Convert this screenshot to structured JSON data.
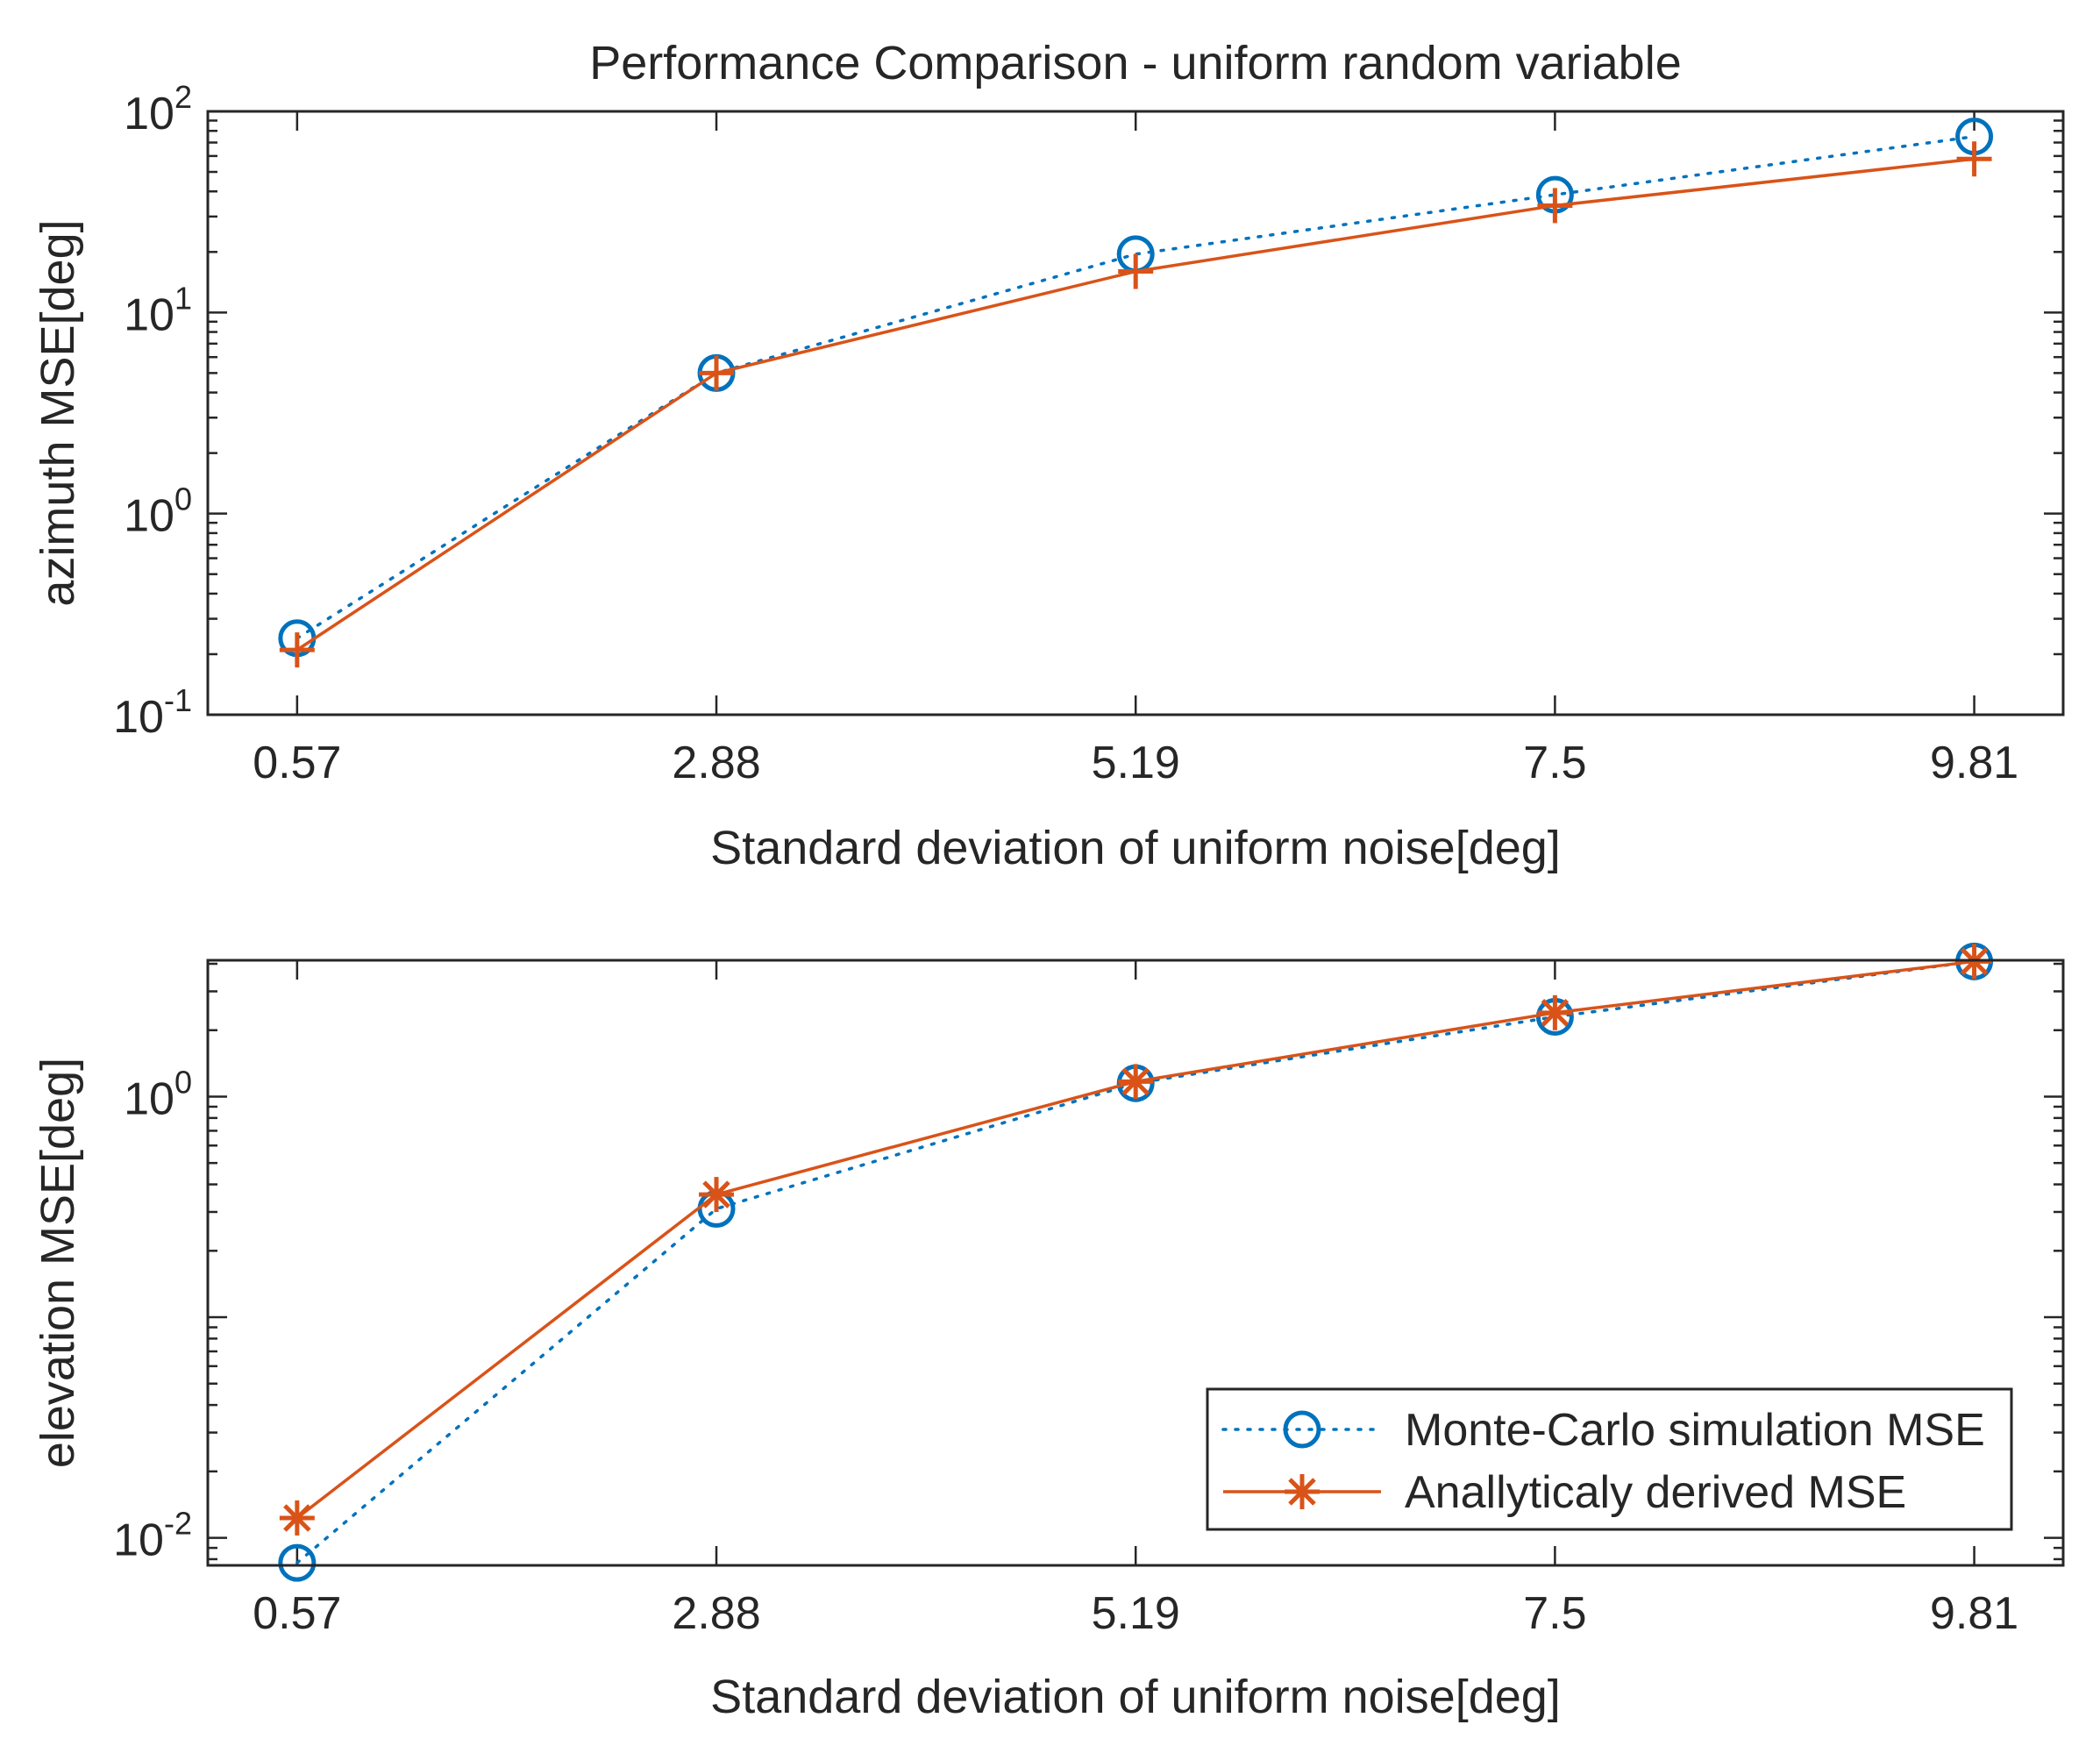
{
  "title": "Performance Comparison  - uniform random variable",
  "colors": {
    "monte_carlo": "#0072BD",
    "analytical": "#D95319",
    "axis": "#262626",
    "background": "#ffffff"
  },
  "legend": {
    "entries": [
      "Monte-Carlo simulation MSE",
      "Anallyticaly derived MSE"
    ],
    "markers": [
      "circle",
      "asterisk"
    ],
    "line_styles": [
      "dotted",
      "solid"
    ],
    "location": "bottom-right of lower plot"
  },
  "chart_data": [
    {
      "type": "line",
      "title": "Performance Comparison  - uniform random variable",
      "xlabel": "Standard deviation of uniform noise[deg]",
      "ylabel": "azimuth MSE[deg]",
      "yscale": "log",
      "ylim": [
        0.1,
        100
      ],
      "xlim": [
        0.078,
        10.3
      ],
      "x": [
        0.57,
        2.88,
        5.19,
        7.5,
        9.81
      ],
      "xticklabels": [
        "0.57",
        "2.88",
        "5.19",
        "7.5",
        "9.81"
      ],
      "yticks": [
        0.1,
        1,
        10,
        100
      ],
      "yticklabels": [
        {
          "base": "10",
          "exp": "-1"
        },
        {
          "base": "10",
          "exp": "0"
        },
        {
          "base": "10",
          "exp": "1"
        },
        {
          "base": "10",
          "exp": "2"
        }
      ],
      "series": [
        {
          "name": "Monte-Carlo simulation MSE",
          "marker": "circle",
          "line": "dotted",
          "values": [
            0.24,
            5.0,
            19.5,
            38.5,
            75.0
          ]
        },
        {
          "name": "Anallyticaly derived MSE",
          "marker": "plus",
          "line": "solid",
          "values": [
            0.21,
            5.0,
            16.0,
            34.0,
            58.0
          ]
        }
      ]
    },
    {
      "type": "line",
      "title": "",
      "xlabel": "Standard deviation of uniform noise[deg]",
      "ylabel": "elevation MSE[deg]",
      "yscale": "log",
      "ylim": [
        0.0075,
        4.15
      ],
      "xlim": [
        0.078,
        10.3
      ],
      "x": [
        0.57,
        2.88,
        5.19,
        7.5,
        9.81
      ],
      "xticklabels": [
        "0.57",
        "2.88",
        "5.19",
        "7.5",
        "9.81"
      ],
      "yticks": [
        0.01,
        1
      ],
      "yticklabels": [
        {
          "base": "10",
          "exp": "-2"
        },
        {
          "base": "10",
          "exp": "0"
        }
      ],
      "series": [
        {
          "name": "Monte-Carlo simulation MSE",
          "marker": "circle",
          "line": "dotted",
          "values": [
            0.0077,
            0.31,
            1.15,
            2.3,
            4.1
          ]
        },
        {
          "name": "Anallyticaly derived MSE",
          "marker": "asterisk",
          "line": "solid",
          "values": [
            0.0123,
            0.36,
            1.17,
            2.4,
            4.1
          ]
        }
      ]
    }
  ]
}
